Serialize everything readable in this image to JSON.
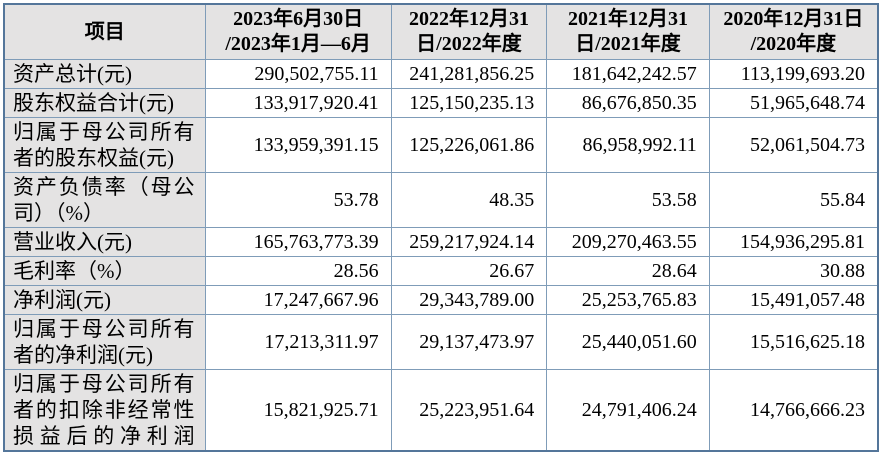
{
  "colors": {
    "border_outer": "#54769a",
    "border_inner": "#7f9cb8",
    "header_bg": "#e4e3e3",
    "cell_bg": "#ffffff",
    "text": "#000000"
  },
  "table": {
    "columns": [
      "项目",
      "2023年6月30日\n/2023年1月—6月",
      "2022年12月31\n日/2022年度",
      "2021年12月31\n日/2021年度",
      "2020年12月31日\n/2020年度"
    ],
    "rows": [
      {
        "item": "资产总计(元)",
        "values": [
          "290,502,755.11",
          "241,281,856.25",
          "181,642,242.57",
          "113,199,693.20"
        ]
      },
      {
        "item": "股东权益合计(元)",
        "values": [
          "133,917,920.41",
          "125,150,235.13",
          "86,676,850.35",
          "51,965,648.74"
        ]
      },
      {
        "item": "归属于母公司所有者的股东权益(元)",
        "values": [
          "133,959,391.15",
          "125,226,061.86",
          "86,958,992.11",
          "52,061,504.73"
        ]
      },
      {
        "item": "资产负债率（母公司）（%）",
        "values": [
          "53.78",
          "48.35",
          "53.58",
          "55.84"
        ]
      },
      {
        "item": "营业收入(元)",
        "values": [
          "165,763,773.39",
          "259,217,924.14",
          "209,270,463.55",
          "154,936,295.81"
        ]
      },
      {
        "item": "毛利率（%）",
        "values": [
          "28.56",
          "26.67",
          "28.64",
          "30.88"
        ]
      },
      {
        "item": "净利润(元)",
        "values": [
          "17,247,667.96",
          "29,343,789.00",
          "25,253,765.83",
          "15,491,057.48"
        ]
      },
      {
        "item": "归属于母公司所有者的净利润(元)",
        "values": [
          "17,213,311.97",
          "29,137,473.97",
          "25,440,051.60",
          "15,516,625.18"
        ]
      },
      {
        "item": "归属于母公司所有者的扣除非经常性损益后的净利润",
        "values": [
          "15,821,925.71",
          "25,223,951.64",
          "24,791,406.24",
          "14,766,666.23"
        ]
      }
    ]
  }
}
